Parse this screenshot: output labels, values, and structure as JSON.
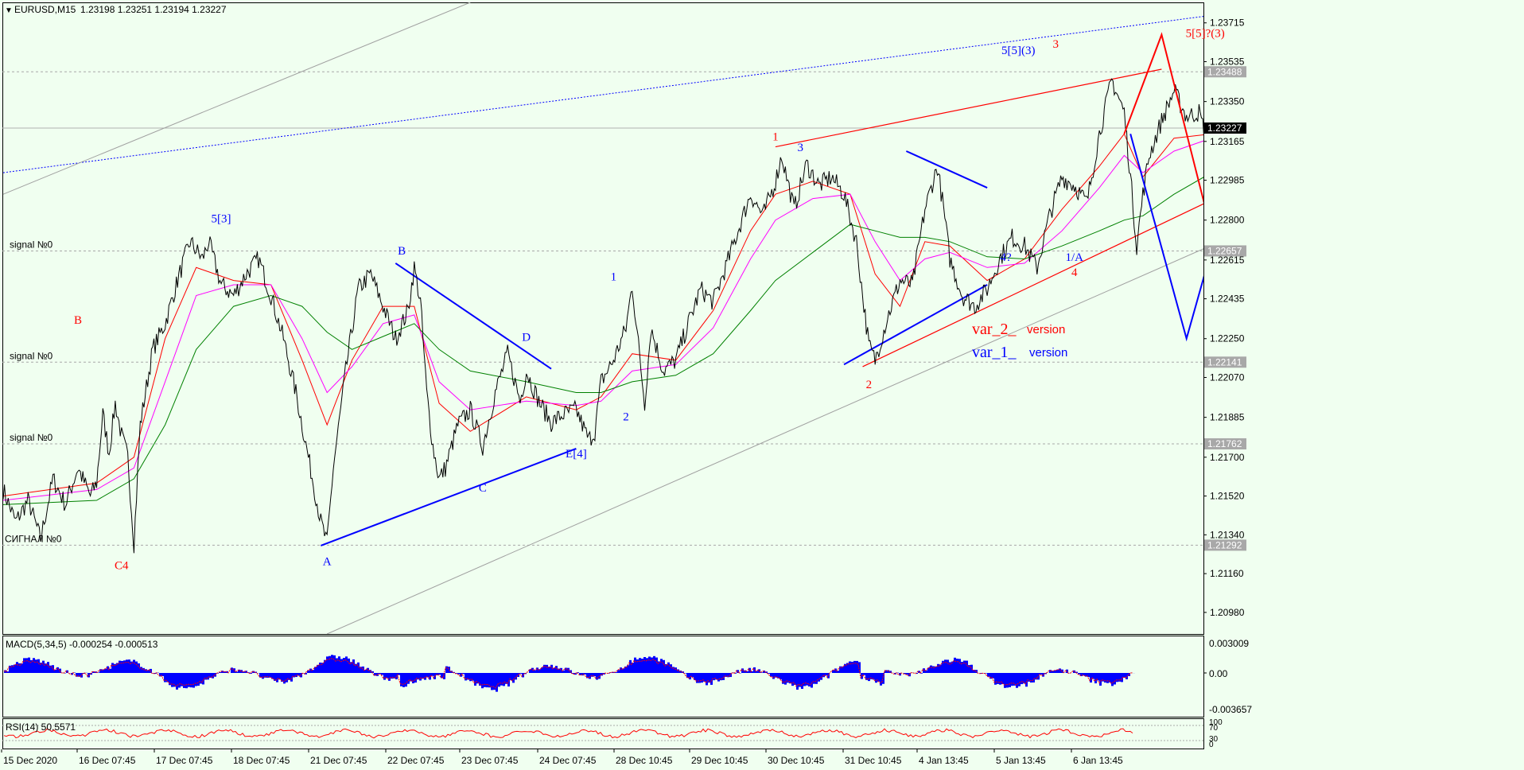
{
  "header": {
    "symbol": "EURUSD,M15",
    "ohlc": "1.23198 1.23251 1.23194 1.23227"
  },
  "macd": {
    "label": "MACD(5,34,5) -0.000254 -0.000513",
    "scale": [
      "0.003009",
      "0.00",
      "-0.003657"
    ]
  },
  "rsi": {
    "label": "RSI(14) 50.5571",
    "scale": [
      "100",
      "70",
      "30",
      "0"
    ]
  },
  "colors": {
    "background": "#f0fff0",
    "price_line": "#000000",
    "ma_fast": "#ff0000",
    "ma_mid": "#ff00ff",
    "ma_slow": "#008000",
    "macd_hist": "#0000ff",
    "macd_signal": "#ff0000",
    "rsi_line": "#ff0000",
    "var1": "#0000ff",
    "var2": "#ff0000"
  },
  "chart_data": {
    "type": "line",
    "title": "EURUSD,M15",
    "y_ticks": [
      "1.23715",
      "1.23535",
      "1.23350",
      "1.23165",
      "1.22985",
      "1.22800",
      "1.22615",
      "1.22435",
      "1.22250",
      "1.22070",
      "1.21885",
      "1.21700",
      "1.21520",
      "1.21340",
      "1.21160",
      "1.20980"
    ],
    "ylim": [
      1.2088,
      1.2381
    ],
    "x_ticks": [
      "15 Dec 2020",
      "16 Dec 07:45",
      "17 Dec 07:45",
      "18 Dec 07:45",
      "21 Dec 07:45",
      "22 Dec 07:45",
      "23 Dec 07:45",
      "24 Dec 07:45",
      "28 Dec 10:45",
      "29 Dec 10:45",
      "30 Dec 10:45",
      "31 Dec 10:45",
      "4 Jan 13:45",
      "5 Jan 13:45",
      "6 Jan 13:45"
    ],
    "price_levels": [
      {
        "value": 1.23488,
        "label": "1.23488"
      },
      {
        "value": 1.23227,
        "label": "1.23227",
        "current": true
      },
      {
        "value": 1.22657,
        "label": "1.22657",
        "signal": "signal №0"
      },
      {
        "value": 1.22141,
        "label": "1.22141",
        "signal": "signal №0"
      },
      {
        "value": 1.21762,
        "label": "1.21762",
        "signal": "signal   №0"
      },
      {
        "value": 1.21292,
        "label": "1.21292",
        "signal": "СИГНАЛ №0"
      }
    ],
    "price_series": [
      [
        0,
        1.2155
      ],
      [
        2,
        1.214
      ],
      [
        4,
        1.215
      ],
      [
        6,
        1.2132
      ],
      [
        8,
        1.216
      ],
      [
        10,
        1.2148
      ],
      [
        12,
        1.2165
      ],
      [
        14,
        1.2152
      ],
      [
        15,
        1.2158
      ],
      [
        16,
        1.219
      ],
      [
        17,
        1.2172
      ],
      [
        18,
        1.2195
      ],
      [
        19,
        1.218
      ],
      [
        20,
        1.217
      ],
      [
        21,
        1.213
      ],
      [
        22,
        1.2185
      ],
      [
        24,
        1.222
      ],
      [
        26,
        1.2232
      ],
      [
        28,
        1.2252
      ],
      [
        30,
        1.227
      ],
      [
        32,
        1.2262
      ],
      [
        33,
        1.227
      ],
      [
        35,
        1.225
      ],
      [
        37,
        1.2245
      ],
      [
        39,
        1.2255
      ],
      [
        41,
        1.2262
      ],
      [
        43,
        1.2245
      ],
      [
        45,
        1.2225
      ],
      [
        47,
        1.22
      ],
      [
        49,
        1.217
      ],
      [
        51,
        1.214
      ],
      [
        52,
        1.213
      ],
      [
        53,
        1.2165
      ],
      [
        55,
        1.221
      ],
      [
        57,
        1.2248
      ],
      [
        59,
        1.2255
      ],
      [
        61,
        1.224
      ],
      [
        63,
        1.2225
      ],
      [
        65,
        1.2238
      ],
      [
        66,
        1.2258
      ],
      [
        67,
        1.2242
      ],
      [
        68,
        1.22
      ],
      [
        69,
        1.2175
      ],
      [
        70,
        1.216
      ],
      [
        71,
        1.2165
      ],
      [
        73,
        1.2185
      ],
      [
        75,
        1.2192
      ],
      [
        77,
        1.2175
      ],
      [
        79,
        1.22
      ],
      [
        81,
        1.2218
      ],
      [
        83,
        1.2196
      ],
      [
        84,
        1.221
      ],
      [
        86,
        1.2196
      ],
      [
        88,
        1.2186
      ],
      [
        90,
        1.219
      ],
      [
        92,
        1.2192
      ],
      [
        94,
        1.2178
      ],
      [
        95,
        1.2182
      ],
      [
        96,
        1.2205
      ],
      [
        98,
        1.2215
      ],
      [
        100,
        1.223
      ],
      [
        101,
        1.225
      ],
      [
        102,
        1.2222
      ],
      [
        103,
        1.2195
      ],
      [
        104,
        1.223
      ],
      [
        106,
        1.221
      ],
      [
        108,
        1.2215
      ],
      [
        110,
        1.2232
      ],
      [
        112,
        1.2248
      ],
      [
        114,
        1.2242
      ],
      [
        116,
        1.2258
      ],
      [
        118,
        1.2275
      ],
      [
        120,
        1.2292
      ],
      [
        122,
        1.2282
      ],
      [
        124,
        1.2298
      ],
      [
        125,
        1.231
      ],
      [
        127,
        1.2285
      ],
      [
        129,
        1.2306
      ],
      [
        131,
        1.2296
      ],
      [
        133,
        1.23
      ],
      [
        135,
        1.2292
      ],
      [
        137,
        1.227
      ],
      [
        138,
        1.2245
      ],
      [
        139,
        1.2222
      ],
      [
        140,
        1.2215
      ],
      [
        142,
        1.2235
      ],
      [
        144,
        1.2252
      ],
      [
        146,
        1.225
      ],
      [
        148,
        1.2285
      ],
      [
        150,
        1.2305
      ],
      [
        151,
        1.2285
      ],
      [
        152,
        1.2262
      ],
      [
        154,
        1.2245
      ],
      [
        156,
        1.224
      ],
      [
        158,
        1.2248
      ],
      [
        160,
        1.2262
      ],
      [
        162,
        1.2272
      ],
      [
        164,
        1.2268
      ],
      [
        166,
        1.2258
      ],
      [
        168,
        1.2282
      ],
      [
        170,
        1.23
      ],
      [
        172,
        1.2296
      ],
      [
        174,
        1.2288
      ],
      [
        176,
        1.232
      ],
      [
        178,
        1.2345
      ],
      [
        180,
        1.233
      ],
      [
        181,
        1.23
      ],
      [
        182,
        1.2268
      ],
      [
        183,
        1.2292
      ],
      [
        184,
        1.231
      ],
      [
        186,
        1.2326
      ],
      [
        188,
        1.234
      ],
      [
        190,
        1.2328
      ],
      [
        192,
        1.233
      ],
      [
        193,
        1.232
      ],
      [
        194,
        1.2322
      ]
    ],
    "moving_averages": [
      {
        "color": "red",
        "points": [
          [
            0,
            1.2152
          ],
          [
            15,
            1.2158
          ],
          [
            21,
            1.217
          ],
          [
            26,
            1.2225
          ],
          [
            31,
            1.2258
          ],
          [
            37,
            1.2252
          ],
          [
            43,
            1.225
          ],
          [
            48,
            1.2215
          ],
          [
            52,
            1.2185
          ],
          [
            56,
            1.2215
          ],
          [
            61,
            1.224
          ],
          [
            66,
            1.224
          ],
          [
            70,
            1.2195
          ],
          [
            75,
            1.2182
          ],
          [
            84,
            1.2198
          ],
          [
            92,
            1.2192
          ],
          [
            96,
            1.2198
          ],
          [
            101,
            1.2218
          ],
          [
            108,
            1.2215
          ],
          [
            114,
            1.2238
          ],
          [
            120,
            1.2275
          ],
          [
            124,
            1.2292
          ],
          [
            130,
            1.2298
          ],
          [
            136,
            1.2292
          ],
          [
            140,
            1.2255
          ],
          [
            144,
            1.224
          ],
          [
            148,
            1.227
          ],
          [
            152,
            1.2268
          ],
          [
            158,
            1.2252
          ],
          [
            164,
            1.2262
          ],
          [
            170,
            1.2285
          ],
          [
            176,
            1.2305
          ],
          [
            180,
            1.232
          ],
          [
            183,
            1.23
          ],
          [
            188,
            1.2318
          ],
          [
            194,
            1.232
          ]
        ]
      },
      {
        "color": "magenta",
        "points": [
          [
            0,
            1.215
          ],
          [
            15,
            1.2155
          ],
          [
            21,
            1.2165
          ],
          [
            26,
            1.2205
          ],
          [
            31,
            1.2245
          ],
          [
            37,
            1.225
          ],
          [
            43,
            1.225
          ],
          [
            48,
            1.2225
          ],
          [
            52,
            1.22
          ],
          [
            56,
            1.2212
          ],
          [
            61,
            1.2232
          ],
          [
            66,
            1.2236
          ],
          [
            70,
            1.2205
          ],
          [
            75,
            1.2192
          ],
          [
            84,
            1.2196
          ],
          [
            92,
            1.2194
          ],
          [
            96,
            1.2196
          ],
          [
            101,
            1.221
          ],
          [
            108,
            1.2213
          ],
          [
            114,
            1.223
          ],
          [
            120,
            1.2262
          ],
          [
            124,
            1.228
          ],
          [
            130,
            1.229
          ],
          [
            136,
            1.2292
          ],
          [
            140,
            1.227
          ],
          [
            144,
            1.2252
          ],
          [
            148,
            1.2262
          ],
          [
            152,
            1.2265
          ],
          [
            158,
            1.2258
          ],
          [
            164,
            1.226
          ],
          [
            170,
            1.2275
          ],
          [
            176,
            1.2295
          ],
          [
            180,
            1.231
          ],
          [
            183,
            1.2302
          ],
          [
            188,
            1.2312
          ],
          [
            194,
            1.2318
          ]
        ]
      },
      {
        "color": "green",
        "points": [
          [
            0,
            1.2148
          ],
          [
            15,
            1.215
          ],
          [
            21,
            1.216
          ],
          [
            26,
            1.2185
          ],
          [
            31,
            1.222
          ],
          [
            37,
            1.224
          ],
          [
            43,
            1.2245
          ],
          [
            48,
            1.224
          ],
          [
            52,
            1.2228
          ],
          [
            56,
            1.222
          ],
          [
            61,
            1.2226
          ],
          [
            66,
            1.2232
          ],
          [
            70,
            1.222
          ],
          [
            75,
            1.221
          ],
          [
            84,
            1.2205
          ],
          [
            92,
            1.22
          ],
          [
            96,
            1.22
          ],
          [
            101,
            1.2205
          ],
          [
            108,
            1.2208
          ],
          [
            114,
            1.2218
          ],
          [
            120,
            1.2238
          ],
          [
            124,
            1.2252
          ],
          [
            130,
            1.2265
          ],
          [
            136,
            1.2278
          ],
          [
            140,
            1.2275
          ],
          [
            144,
            1.2272
          ],
          [
            148,
            1.2272
          ],
          [
            152,
            1.227
          ],
          [
            158,
            1.2263
          ],
          [
            164,
            1.2262
          ],
          [
            170,
            1.2268
          ],
          [
            176,
            1.2275
          ],
          [
            180,
            1.228
          ],
          [
            183,
            1.2282
          ],
          [
            188,
            1.2292
          ],
          [
            194,
            1.2302
          ]
        ]
      }
    ],
    "trend_lines": [
      {
        "color": "blue",
        "style": "dotted",
        "from": [
          0,
          1.2302
        ],
        "to": [
          210,
          1.2381
        ]
      },
      {
        "color": "red",
        "from": [
          124,
          1.2314
        ],
        "to": [
          186,
          1.235
        ]
      },
      {
        "color": "red",
        "from": [
          138,
          1.2212
        ],
        "to": [
          230,
          1.2339
        ]
      },
      {
        "color": "blue",
        "from": [
          51,
          1.2129
        ],
        "to": [
          92,
          1.2174
        ]
      },
      {
        "color": "blue",
        "from": [
          63,
          1.226
        ],
        "to": [
          88,
          1.2211
        ]
      },
      {
        "color": "blue",
        "from": [
          135,
          1.2213
        ],
        "to": [
          158,
          1.225
        ]
      },
      {
        "color": "blue",
        "from": [
          145,
          1.2312
        ],
        "to": [
          158,
          1.2295
        ]
      },
      {
        "color": "gray",
        "from": [
          52,
          1.2088
        ],
        "to": [
          230,
          1.2314
        ]
      },
      {
        "color": "gray",
        "from": [
          0,
          1.2292
        ],
        "to": [
          75,
          1.2381
        ]
      }
    ],
    "projections": [
      {
        "name": "var_1_ version",
        "color": "blue",
        "points": [
          [
            181,
            1.232
          ],
          [
            190,
            1.2225
          ],
          [
            194,
            1.2266
          ],
          [
            202,
            1.2174
          ]
        ]
      },
      {
        "name": "var_2_ version",
        "color": "red",
        "points": [
          [
            180,
            1.232
          ],
          [
            186,
            1.2366
          ],
          [
            200,
            1.2206
          ],
          [
            206,
            1.2275
          ],
          [
            218,
            1.2152
          ]
        ]
      }
    ],
    "wave_labels": [
      {
        "text": "B",
        "color": "red",
        "x": 12,
        "y": 1.2232
      },
      {
        "text": "C4",
        "color": "red",
        "x": 19,
        "y": 1.2118
      },
      {
        "text": "5[3]",
        "color": "blue",
        "x": 35,
        "y": 1.2279
      },
      {
        "text": "A",
        "color": "blue",
        "x": 52,
        "y": 1.212
      },
      {
        "text": "B",
        "color": "blue",
        "x": 64,
        "y": 1.2264
      },
      {
        "text": "C",
        "color": "blue",
        "x": 77,
        "y": 1.2154
      },
      {
        "text": "D",
        "color": "blue",
        "x": 84,
        "y": 1.2224
      },
      {
        "text": "E[4]",
        "color": "blue",
        "x": 92,
        "y": 1.217
      },
      {
        "text": "1",
        "color": "blue",
        "x": 98,
        "y": 1.2252
      },
      {
        "text": "2",
        "color": "blue",
        "x": 100,
        "y": 1.2187
      },
      {
        "text": "1",
        "color": "red",
        "x": 124,
        "y": 1.2317
      },
      {
        "text": "3",
        "color": "blue",
        "x": 128,
        "y": 1.2312
      },
      {
        "text": "2",
        "color": "red",
        "x": 139,
        "y": 1.2202
      },
      {
        "text": "5[5](3)",
        "color": "blue",
        "x": 163,
        "y": 1.2357
      },
      {
        "text": "3",
        "color": "red",
        "x": 169,
        "y": 1.236
      },
      {
        "text": "4?",
        "color": "blue",
        "x": 161,
        "y": 1.2261
      },
      {
        "text": "1/A",
        "color": "blue",
        "x": 172,
        "y": 1.2261
      },
      {
        "text": "4",
        "color": "red",
        "x": 172,
        "y": 1.2254
      },
      {
        "text": "5[5]?(3)",
        "color": "red",
        "x": 193,
        "y": 1.2365
      }
    ],
    "legend": [
      {
        "text": "var_2_",
        "suffix": "version",
        "color": "red"
      },
      {
        "text": "var_1_",
        "suffix": "version",
        "color": "blue"
      }
    ]
  }
}
